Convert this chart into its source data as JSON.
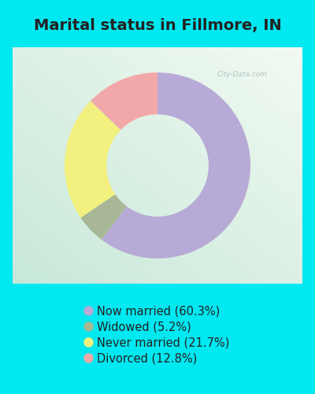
{
  "title": "Marital status in Fillmore, IN",
  "slices": [
    60.3,
    5.2,
    21.7,
    12.8
  ],
  "labels": [
    "Now married (60.3%)",
    "Widowed (5.2%)",
    "Never married (21.7%)",
    "Divorced (12.8%)"
  ],
  "colors": [
    "#b8aad6",
    "#a8b896",
    "#f2f07e",
    "#f2a8a8"
  ],
  "bg_cyan": "#00e8f0",
  "chart_bg_colors": [
    "#e8f8f0",
    "#d8ecd8"
  ],
  "title_fontsize": 14,
  "legend_fontsize": 10.5,
  "watermark": "City-Data.com",
  "startangle": 90,
  "donut_width": 0.45
}
